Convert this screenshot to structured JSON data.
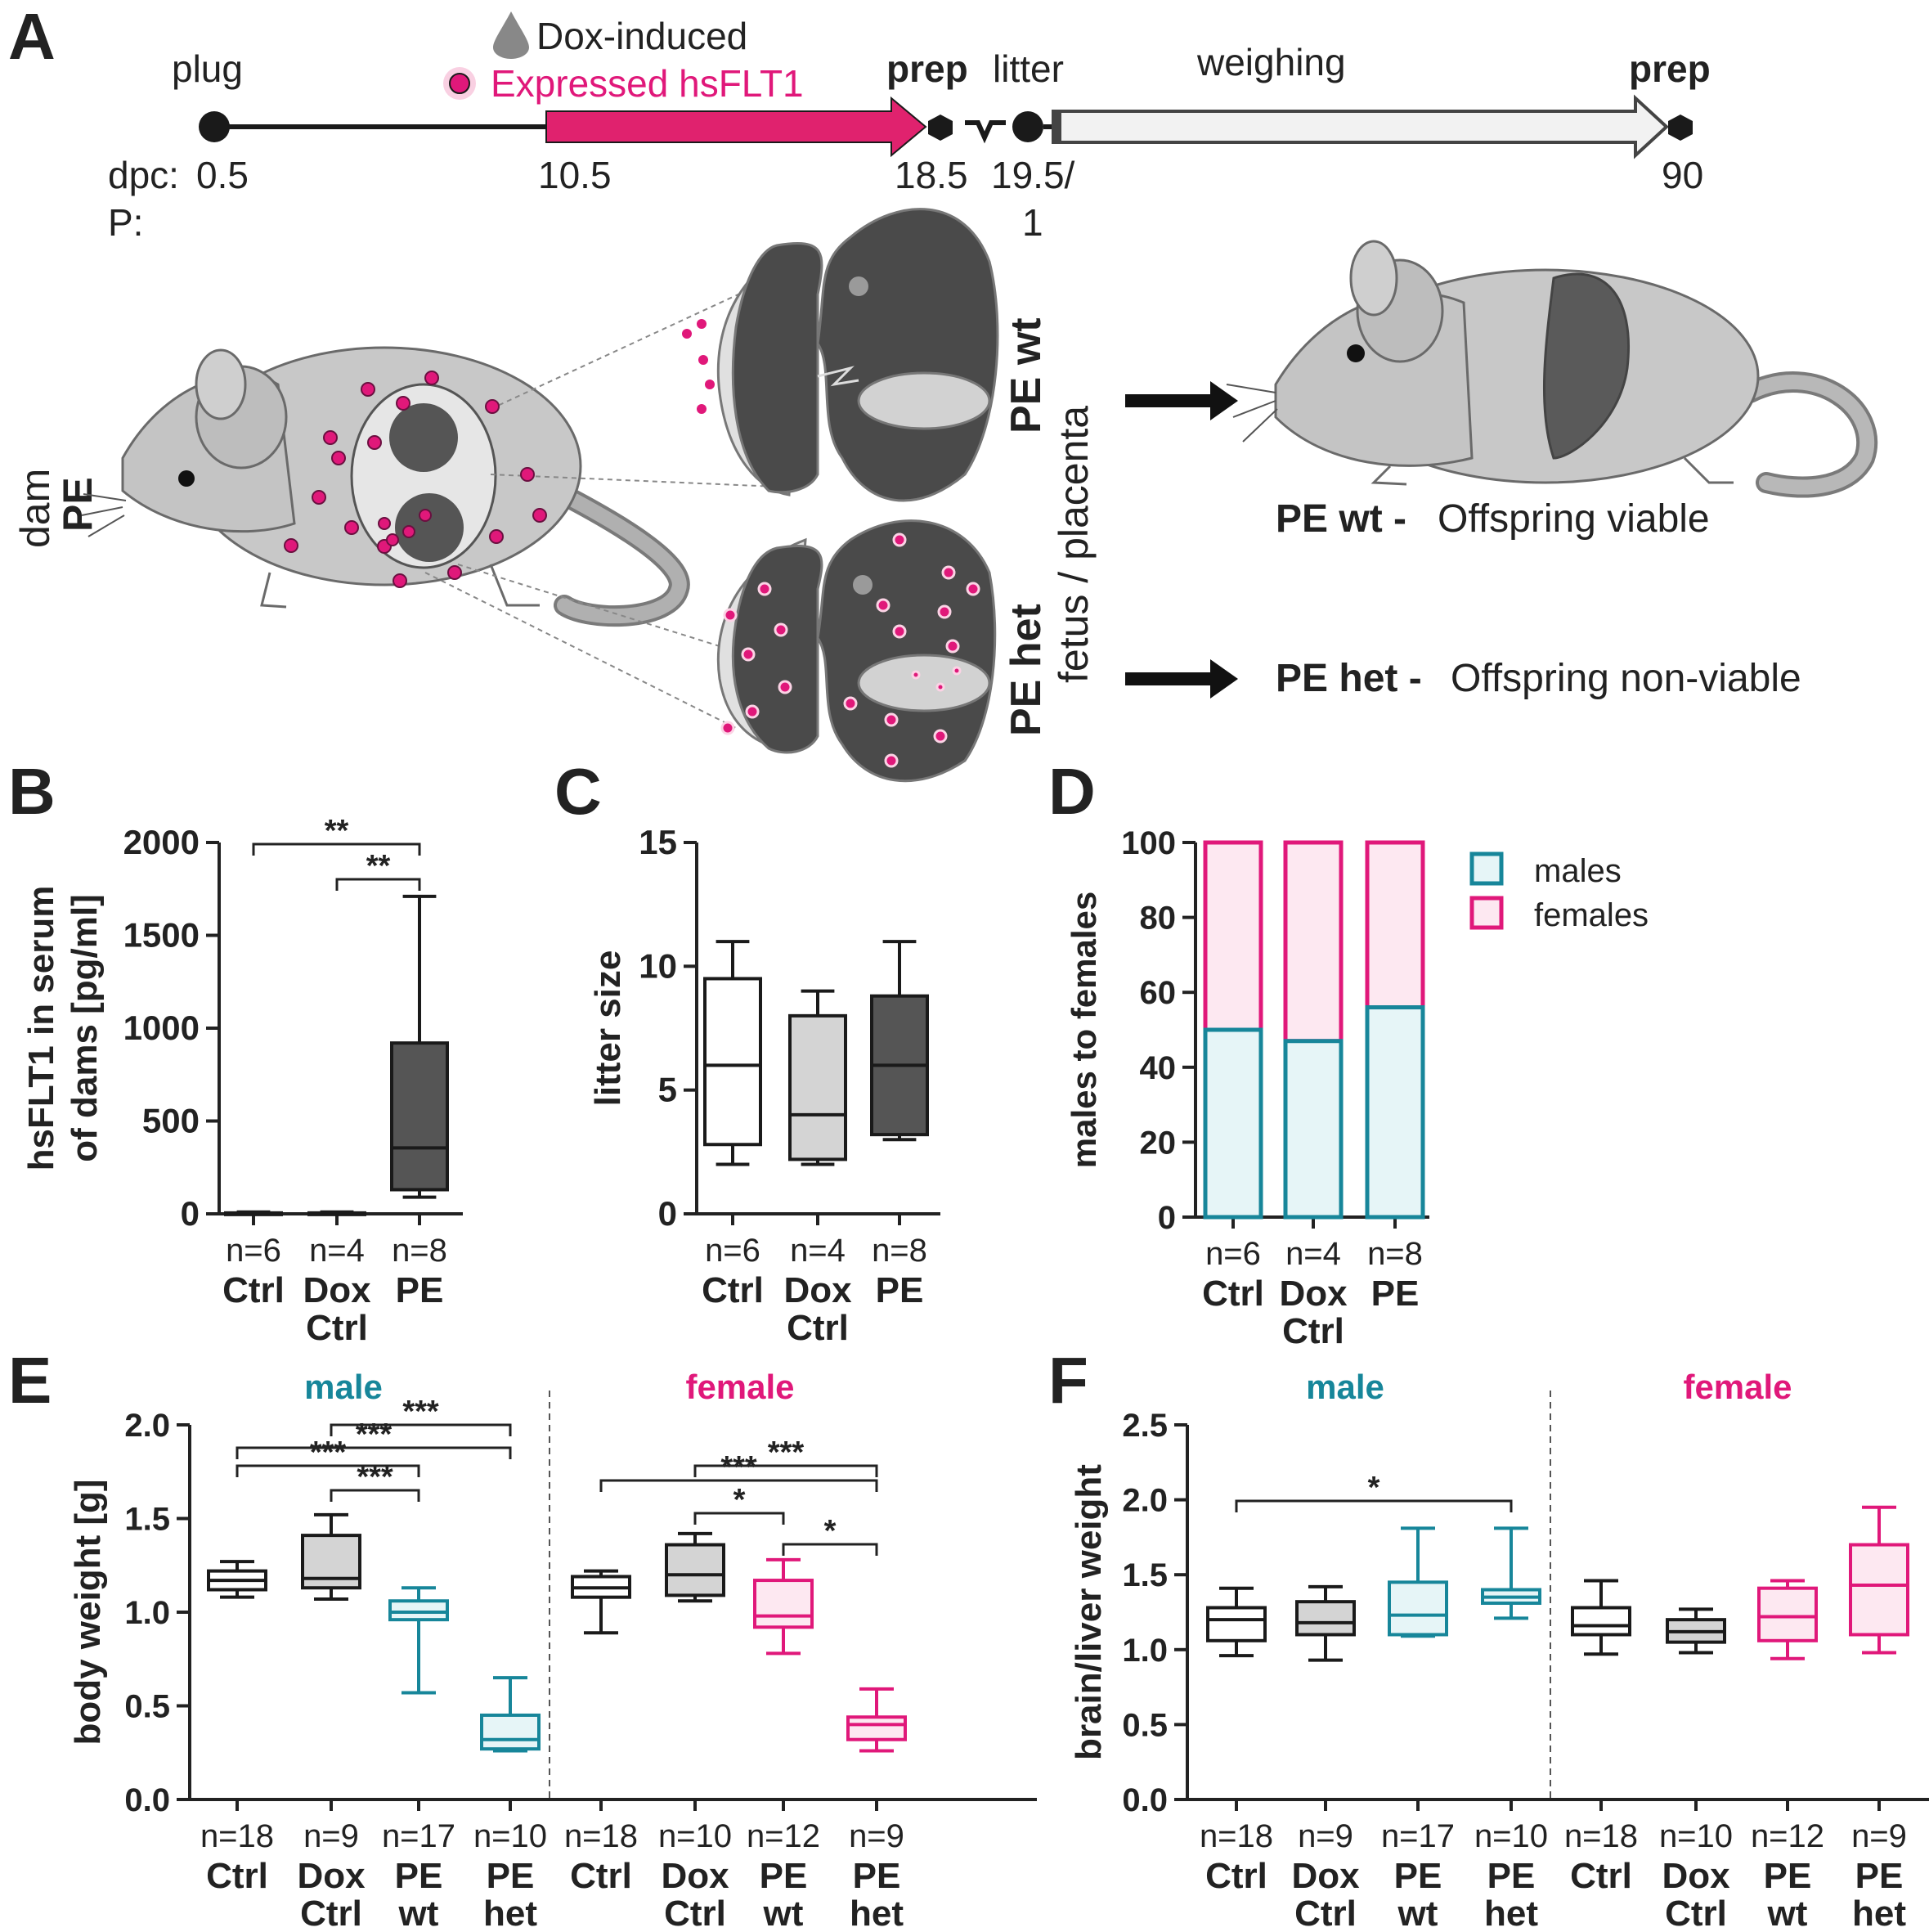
{
  "panel_letters": [
    "A",
    "B",
    "C",
    "D",
    "E",
    "F"
  ],
  "colors": {
    "teal": "#17869a",
    "magenta": "#e0187a",
    "dark_gray": "#555555",
    "light_gray": "#d4d4d4",
    "mouse_gray": "#c9c9c9",
    "black": "#1a1a1a"
  },
  "timeline": {
    "plug": "plug",
    "dox_induced": "Dox-induced",
    "expressed": "Expressed hsFLT1",
    "prep1": "prep",
    "litter": "litter",
    "weighing": "weighing",
    "prep2": "prep",
    "dpc_label": "dpc:",
    "p_label": "P:",
    "t05": "0.5",
    "t105": "10.5",
    "t185": "18.5",
    "t195": "19.5/",
    "p1": "1",
    "p90": "90"
  },
  "schematic": {
    "dam": "dam",
    "dam_pe": "PE",
    "pe_wt_vertical": "PE wt",
    "pe_het_vertical": "PE het",
    "fetus_placenta": "fetus / placenta",
    "outcome_wt_bold": "PE wt -",
    "outcome_wt_text": "Offspring viable",
    "outcome_het_bold": "PE het -",
    "outcome_het_text": "Offspring non-viable"
  },
  "chart_data": [
    {
      "panel": "B",
      "type": "box",
      "ylabel": [
        "hsFLT1 in serum",
        "of dams [pg/ml]"
      ],
      "ylim": [
        0,
        2000
      ],
      "yticks": [
        "0",
        "500",
        "1000",
        "1500",
        "2000"
      ],
      "categories": [
        [
          "Ctrl"
        ],
        [
          "Dox",
          "Ctrl"
        ],
        [
          "PE"
        ]
      ],
      "n": [
        "n=6",
        "n=4",
        "n=8"
      ],
      "boxes": [
        {
          "min": 0,
          "q1": 0,
          "median": 0,
          "q3": 5,
          "max": 10,
          "fill": "#ffffff",
          "stroke": "#1a1a1a"
        },
        {
          "min": 0,
          "q1": 0,
          "median": 0,
          "q3": 5,
          "max": 10,
          "fill": "#d4d4d4",
          "stroke": "#1a1a1a"
        },
        {
          "min": 90,
          "q1": 130,
          "median": 355,
          "q3": 920,
          "max": 1710,
          "fill": "#555555",
          "stroke": "#1a1a1a"
        }
      ],
      "significance": [
        {
          "from": 0,
          "to": 2,
          "label": "**"
        },
        {
          "from": 1,
          "to": 2,
          "label": "**"
        }
      ]
    },
    {
      "panel": "C",
      "type": "box",
      "ylabel": [
        "litter size"
      ],
      "ylim": [
        0,
        15
      ],
      "yticks": [
        "0",
        "5",
        "10",
        "15"
      ],
      "categories": [
        [
          "Ctrl"
        ],
        [
          "Dox",
          "Ctrl"
        ],
        [
          "PE"
        ]
      ],
      "n": [
        "n=6",
        "n=4",
        "n=8"
      ],
      "boxes": [
        {
          "min": 2,
          "q1": 2.8,
          "median": 6,
          "q3": 9.5,
          "max": 11,
          "fill": "#ffffff",
          "stroke": "#1a1a1a"
        },
        {
          "min": 2,
          "q1": 2.2,
          "median": 4,
          "q3": 8,
          "max": 9,
          "fill": "#d4d4d4",
          "stroke": "#1a1a1a"
        },
        {
          "min": 3,
          "q1": 3.2,
          "median": 6,
          "q3": 8.8,
          "max": 11,
          "fill": "#555555",
          "stroke": "#1a1a1a"
        }
      ],
      "significance": []
    },
    {
      "panel": "D",
      "type": "stacked_bar",
      "ylabel": [
        "males to females"
      ],
      "ylim": [
        0,
        100
      ],
      "yticks": [
        "0",
        "20",
        "40",
        "60",
        "80",
        "100"
      ],
      "categories": [
        [
          "Ctrl"
        ],
        [
          "Dox",
          "Ctrl"
        ],
        [
          "PE"
        ]
      ],
      "n": [
        "n=6",
        "n=4",
        "n=8"
      ],
      "series": [
        {
          "name": "males",
          "values": [
            50,
            47,
            56
          ]
        },
        {
          "name": "females",
          "values": [
            50,
            53,
            44
          ]
        }
      ],
      "legend": [
        "males",
        "females"
      ]
    },
    {
      "panel": "E",
      "type": "box",
      "ylabel": [
        "body weight [g]"
      ],
      "ylim": [
        0,
        2.0
      ],
      "yticks": [
        "0.0",
        "0.5",
        "1.0",
        "1.5",
        "2.0"
      ],
      "group_labels": [
        "male",
        "female"
      ],
      "categories": [
        [
          "Ctrl"
        ],
        [
          "Dox",
          "Ctrl"
        ],
        [
          "PE",
          "wt"
        ],
        [
          "PE",
          "het"
        ],
        [
          "Ctrl"
        ],
        [
          "Dox",
          "Ctrl"
        ],
        [
          "PE",
          "wt"
        ],
        [
          "PE",
          "het"
        ]
      ],
      "n": [
        "n=18",
        "n=9",
        "n=17",
        "n=10",
        "n=18",
        "n=10",
        "n=12",
        "n=9"
      ],
      "boxes": [
        {
          "min": 1.08,
          "q1": 1.12,
          "median": 1.17,
          "q3": 1.22,
          "max": 1.27,
          "fill": "#ffffff",
          "stroke": "#1a1a1a"
        },
        {
          "min": 1.07,
          "q1": 1.13,
          "median": 1.18,
          "q3": 1.41,
          "max": 1.52,
          "fill": "#d4d4d4",
          "stroke": "#1a1a1a"
        },
        {
          "min": 0.57,
          "q1": 0.96,
          "median": 1.0,
          "q3": 1.06,
          "max": 1.13,
          "fill": "#e6f5f7",
          "stroke": "#17869a"
        },
        {
          "min": 0.26,
          "q1": 0.27,
          "median": 0.32,
          "q3": 0.45,
          "max": 0.65,
          "fill": "#e6f5f7",
          "stroke": "#17869a"
        },
        {
          "min": 0.89,
          "q1": 1.08,
          "median": 1.13,
          "q3": 1.19,
          "max": 1.22,
          "fill": "#ffffff",
          "stroke": "#1a1a1a"
        },
        {
          "min": 1.06,
          "q1": 1.09,
          "median": 1.2,
          "q3": 1.36,
          "max": 1.42,
          "fill": "#d4d4d4",
          "stroke": "#1a1a1a"
        },
        {
          "min": 0.78,
          "q1": 0.92,
          "median": 0.98,
          "q3": 1.17,
          "max": 1.28,
          "fill": "#fde8f1",
          "stroke": "#e0187a"
        },
        {
          "min": 0.26,
          "q1": 0.32,
          "median": 0.4,
          "q3": 0.44,
          "max": 0.59,
          "fill": "#fde8f1",
          "stroke": "#e0187a"
        }
      ],
      "significance": [
        {
          "from": 1,
          "to": 3,
          "label": "***"
        },
        {
          "from": 0,
          "to": 3,
          "label": "***"
        },
        {
          "from": 0,
          "to": 2,
          "label": "***"
        },
        {
          "from": 1,
          "to": 2,
          "label": "***"
        },
        {
          "from": 5,
          "to": 7,
          "label": "***"
        },
        {
          "from": 4,
          "to": 7,
          "label": "***"
        },
        {
          "from": 5,
          "to": 6,
          "label": "*"
        },
        {
          "from": 6,
          "to": 7,
          "label": "*"
        }
      ]
    },
    {
      "panel": "F",
      "type": "box",
      "ylabel": [
        "brain/liver weight"
      ],
      "ylim": [
        0,
        2.5
      ],
      "yticks": [
        "0.0",
        "0.5",
        "1.0",
        "1.5",
        "2.0",
        "2.5"
      ],
      "group_labels": [
        "male",
        "female"
      ],
      "categories": [
        [
          "Ctrl"
        ],
        [
          "Dox",
          "Ctrl"
        ],
        [
          "PE",
          "wt"
        ],
        [
          "PE",
          "het"
        ],
        [
          "Ctrl"
        ],
        [
          "Dox",
          "Ctrl"
        ],
        [
          "PE",
          "wt"
        ],
        [
          "PE",
          "het"
        ]
      ],
      "n": [
        "n=18",
        "n=9",
        "n=17",
        "n=10",
        "n=18",
        "n=10",
        "n=12",
        "n=9"
      ],
      "boxes": [
        {
          "min": 0.96,
          "q1": 1.06,
          "median": 1.2,
          "q3": 1.28,
          "max": 1.41,
          "fill": "#ffffff",
          "stroke": "#1a1a1a"
        },
        {
          "min": 0.93,
          "q1": 1.1,
          "median": 1.18,
          "q3": 1.32,
          "max": 1.42,
          "fill": "#d4d4d4",
          "stroke": "#1a1a1a"
        },
        {
          "min": 1.09,
          "q1": 1.1,
          "median": 1.23,
          "q3": 1.45,
          "max": 1.81,
          "fill": "#e6f5f7",
          "stroke": "#17869a"
        },
        {
          "min": 1.21,
          "q1": 1.31,
          "median": 1.35,
          "q3": 1.4,
          "max": 1.81,
          "fill": "#e6f5f7",
          "stroke": "#17869a"
        },
        {
          "min": 0.97,
          "q1": 1.1,
          "median": 1.16,
          "q3": 1.28,
          "max": 1.46,
          "fill": "#ffffff",
          "stroke": "#1a1a1a"
        },
        {
          "min": 0.98,
          "q1": 1.05,
          "median": 1.12,
          "q3": 1.2,
          "max": 1.27,
          "fill": "#d4d4d4",
          "stroke": "#1a1a1a"
        },
        {
          "min": 0.94,
          "q1": 1.06,
          "median": 1.22,
          "q3": 1.41,
          "max": 1.46,
          "fill": "#fde8f1",
          "stroke": "#e0187a"
        },
        {
          "min": 0.98,
          "q1": 1.1,
          "median": 1.43,
          "q3": 1.7,
          "max": 1.95,
          "fill": "#fde8f1",
          "stroke": "#e0187a"
        }
      ],
      "significance": [
        {
          "from": 0,
          "to": 3,
          "label": "*"
        }
      ]
    }
  ]
}
